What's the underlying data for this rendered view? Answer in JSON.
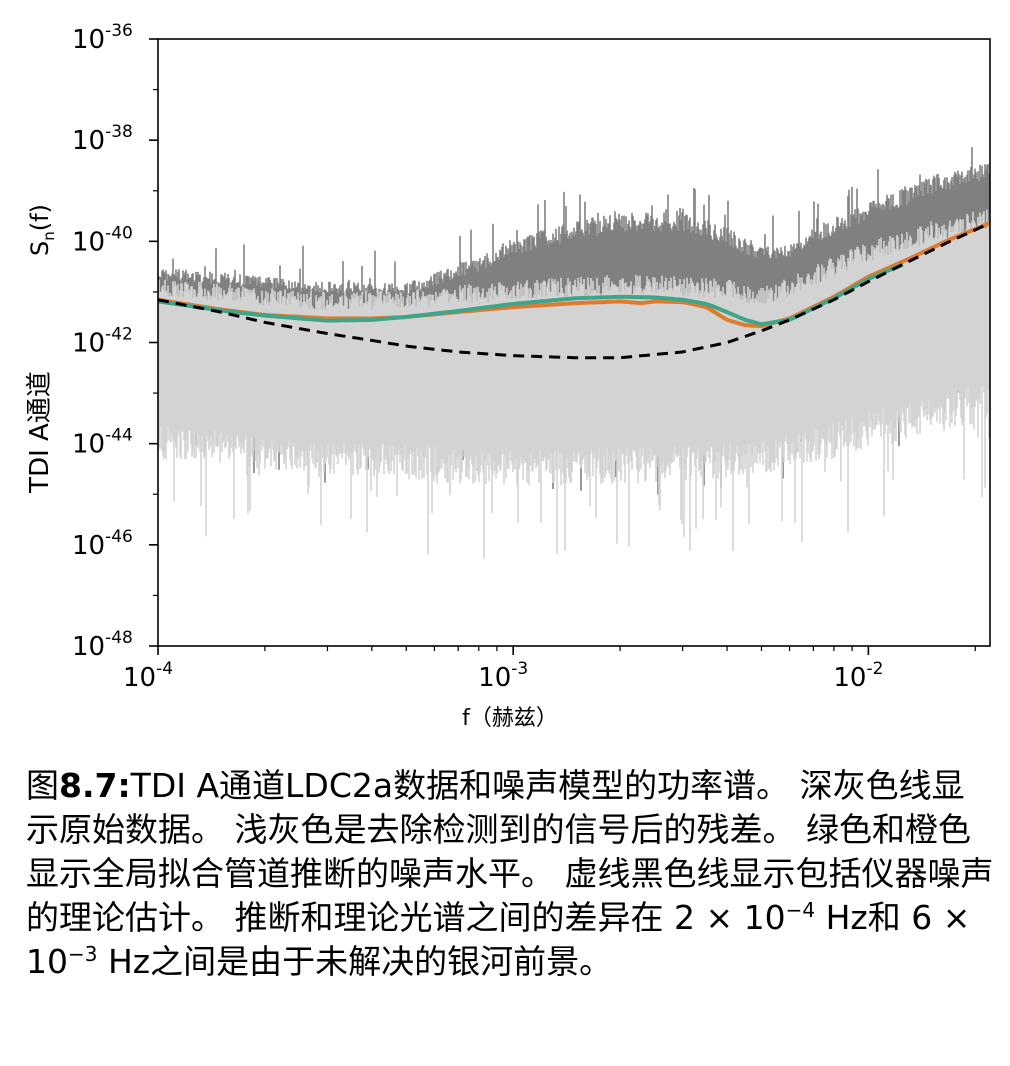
{
  "colors": {
    "raw_data": "#808080",
    "residual": "#d3d3d3",
    "global_fit": "#3fa58a",
    "pipeline": "#e07b2e",
    "theory": "#000000"
  },
  "chart_data": {
    "type": "line",
    "xscale": "log",
    "yscale": "log",
    "xlabel": "f（赫兹）",
    "ylabel_top": "S",
    "ylabel_sub": "n",
    "ylabel_rest": "(f)",
    "ylabel_bottom": "TDI A通道",
    "xlim": [
      0.0001,
      0.022
    ],
    "ylim": [
      1e-48,
      1e-36
    ],
    "grid": false,
    "legend": "none",
    "x_ticks": [
      {
        "value": 0.0001,
        "base": "10",
        "exp": "-4"
      },
      {
        "value": 0.001,
        "base": "10",
        "exp": "-3"
      },
      {
        "value": 0.01,
        "base": "10",
        "exp": "-2"
      }
    ],
    "y_ticks": [
      {
        "value": 1e-36,
        "base": "10",
        "exp": "-36"
      },
      {
        "value": 1e-38,
        "base": "10",
        "exp": "-38"
      },
      {
        "value": 1e-40,
        "base": "10",
        "exp": "-40"
      },
      {
        "value": 1e-42,
        "base": "10",
        "exp": "-42"
      },
      {
        "value": 1e-44,
        "base": "10",
        "exp": "-44"
      },
      {
        "value": 1e-46,
        "base": "10",
        "exp": "-46"
      },
      {
        "value": 1e-48,
        "base": "10",
        "exp": "-48"
      }
    ],
    "series": [
      {
        "key": "raw_data",
        "style": "noise-band",
        "color": "#808080",
        "x": [
          0.0001,
          0.00015,
          0.0002,
          0.0003,
          0.0005,
          0.0008,
          0.001,
          0.0015,
          0.002,
          0.003,
          0.004,
          0.005,
          0.006,
          0.008,
          0.01,
          0.012,
          0.015,
          0.018,
          0.022
        ],
        "upper": [
          3e-41,
          2.5e-41,
          2e-41,
          1.6e-41,
          1.5e-41,
          5e-41,
          1.2e-40,
          2.5e-40,
          4e-40,
          4e-40,
          2e-40,
          8e-41,
          1e-40,
          3e-40,
          6e-40,
          1e-39,
          2e-39,
          3e-39,
          4e-39
        ],
        "lower": [
          1e-43,
          8e-44,
          7e-44,
          6e-44,
          5e-44,
          5e-44,
          4e-44,
          4e-44,
          3e-44,
          4e-44,
          4e-44,
          5e-44,
          6e-44,
          1e-43,
          1.5e-43,
          2e-43,
          3e-43,
          5e-43,
          6e-43
        ]
      },
      {
        "key": "residual",
        "style": "noise-band",
        "color": "#d3d3d3",
        "x": [
          0.0001,
          0.00015,
          0.0002,
          0.0003,
          0.0005,
          0.0008,
          0.001,
          0.0015,
          0.002,
          0.003,
          0.004,
          0.005,
          0.006,
          0.008,
          0.01,
          0.012,
          0.015,
          0.018,
          0.022
        ],
        "upper": [
          2e-41,
          1.5e-41,
          1.2e-41,
          1e-41,
          1.1e-41,
          1.5e-41,
          1.8e-41,
          2e-41,
          2.2e-41,
          2.1e-41,
          1.8e-41,
          1.2e-41,
          2e-41,
          5e-41,
          1e-40,
          1.5e-40,
          2.5e-40,
          3.5e-40,
          4.5e-40
        ],
        "lower": [
          5e-45,
          4e-45,
          3e-45,
          2.5e-45,
          2e-45,
          1.5e-45,
          1.5e-45,
          1.5e-45,
          1.5e-45,
          1.8e-45,
          2e-45,
          2.5e-45,
          3e-45,
          5e-45,
          8e-45,
          1e-44,
          1.5e-44,
          2e-44,
          3e-44
        ]
      },
      {
        "key": "pipeline",
        "style": "solid",
        "color": "#e07b2e",
        "x": [
          0.0001,
          0.00015,
          0.0002,
          0.0003,
          0.0004,
          0.0005,
          0.0007,
          0.001,
          0.0015,
          0.002,
          0.0023,
          0.0025,
          0.003,
          0.0035,
          0.004,
          0.0045,
          0.005,
          0.006,
          0.008,
          0.01,
          0.013,
          0.017,
          0.022
        ],
        "y": [
          7e-42,
          4.5e-42,
          3.5e-42,
          3e-42,
          3e-42,
          3.2e-42,
          4e-42,
          5e-42,
          6e-42,
          6.5e-42,
          6e-42,
          6.5e-42,
          6.3e-42,
          5e-42,
          2.8e-42,
          2.2e-42,
          2.1e-42,
          3e-42,
          8e-42,
          2e-41,
          4.5e-41,
          1.1e-40,
          2.3e-40
        ]
      },
      {
        "key": "global_fit",
        "style": "solid",
        "color": "#3fa58a",
        "x": [
          0.0001,
          0.00015,
          0.0002,
          0.0003,
          0.0004,
          0.0005,
          0.0007,
          0.001,
          0.0015,
          0.002,
          0.0025,
          0.003,
          0.0035,
          0.004,
          0.0045,
          0.005,
          0.006,
          0.008,
          0.01,
          0.0125
        ],
        "y": [
          6.5e-42,
          4.3e-42,
          3.4e-42,
          2.7e-42,
          2.8e-42,
          3.2e-42,
          4.2e-42,
          5.8e-42,
          7.5e-42,
          8e-42,
          7.8e-42,
          7e-42,
          5.8e-42,
          4e-42,
          2.8e-42,
          2.3e-42,
          2.8e-42,
          7.5e-42,
          1.8e-41,
          3.5e-41
        ]
      },
      {
        "key": "theory",
        "style": "dashed",
        "color": "#000000",
        "x": [
          0.0001,
          0.00015,
          0.0002,
          0.0003,
          0.0004,
          0.0005,
          0.0007,
          0.001,
          0.0015,
          0.002,
          0.003,
          0.004,
          0.005,
          0.006,
          0.008,
          0.01,
          0.013,
          0.017,
          0.022
        ],
        "y": [
          7e-42,
          4e-42,
          2.5e-42,
          1.5e-42,
          1.1e-42,
          8.5e-43,
          6.5e-43,
          5.5e-43,
          5e-43,
          5e-43,
          6.5e-43,
          1e-42,
          1.7e-42,
          2.8e-42,
          7e-42,
          1.6e-41,
          4e-41,
          1e-40,
          2.3e-40
        ]
      }
    ]
  },
  "caption": {
    "label": "图",
    "number": "8.7:",
    "part1": "TDI A通道LDC2a数据和噪声模型的功率谱。 深灰色线显示原始数据。 浅灰色是去除检测到的信号后的残差。 绿色和橙色显示全局拟合管道推断的噪声水平。 虚线黑色线显示包括仪器噪声的理论估计。 推断和理论光谱之间的差异在 2 × 10",
    "exp1": "−4",
    "part2": " Hz和 6 × 10",
    "exp2": "−3",
    "part3": " Hz之间是由于未解决的银河前景。"
  }
}
